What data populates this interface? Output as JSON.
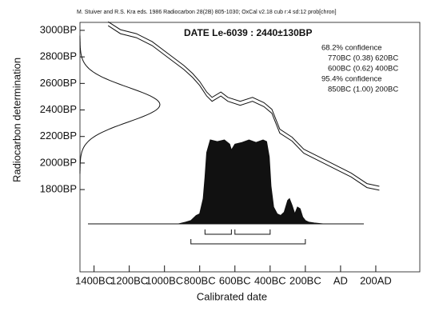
{
  "chart_data": {
    "type": "calibration",
    "reference": "M. Stuiver and R.S. Kra eds. 1986 Radiocarbon 28(2B) 805-1030; OxCal v2.18 cub r:4 sd:12 prob[chron]",
    "title": "DATE Le-6039 : 2440±130BP",
    "x_label": "Calibrated date",
    "y_label": "Radiocarbon determination",
    "xlim": [
      -1480,
      450
    ],
    "ylim": [
      1180,
      3060
    ],
    "xticks": [
      {
        "value": -1400,
        "label": "1400BC"
      },
      {
        "value": -1200,
        "label": "1200BC"
      },
      {
        "value": -1000,
        "label": "1000BC"
      },
      {
        "value": -800,
        "label": "800BC"
      },
      {
        "value": -600,
        "label": "600BC"
      },
      {
        "value": -400,
        "label": "400BC"
      },
      {
        "value": -200,
        "label": "200BC"
      },
      {
        "value": 0,
        "label": "AD"
      },
      {
        "value": 200,
        "label": "200AD"
      }
    ],
    "yticks": [
      {
        "value": 1800,
        "label": "1800BP"
      },
      {
        "value": 2000,
        "label": "2000BP"
      },
      {
        "value": 2200,
        "label": "2200BP"
      },
      {
        "value": 2400,
        "label": "2400BP"
      },
      {
        "value": 2600,
        "label": "2600BP"
      },
      {
        "value": 2800,
        "label": "2800BP"
      },
      {
        "value": 3000,
        "label": "3000BP"
      }
    ],
    "measurement": {
      "mean": 2440,
      "sd": 130
    },
    "curve": {
      "x": [
        -1320,
        -1250,
        -1160,
        -1070,
        -980,
        -890,
        -840,
        -800,
        -760,
        -730,
        -680,
        -640,
        -570,
        -500,
        -435,
        -390,
        -345,
        -275,
        -210,
        -120,
        -30,
        60,
        150,
        220
      ],
      "upper": [
        3065,
        3005,
        2975,
        2915,
        2825,
        2735,
        2675,
        2615,
        2535,
        2495,
        2535,
        2495,
        2465,
        2495,
        2455,
        2405,
        2255,
        2195,
        2105,
        2045,
        1985,
        1925,
        1845,
        1825
      ],
      "lower": [
        3035,
        2975,
        2945,
        2885,
        2795,
        2705,
        2645,
        2585,
        2505,
        2465,
        2505,
        2465,
        2435,
        2465,
        2425,
        2375,
        2225,
        2165,
        2075,
        2015,
        1955,
        1895,
        1815,
        1795
      ]
    },
    "probability": {
      "x": [
        -920,
        -880,
        -850,
        -820,
        -800,
        -780,
        -770,
        -760,
        -740,
        -700,
        -660,
        -630,
        -620,
        -600,
        -560,
        -520,
        -480,
        -440,
        -420,
        -405,
        -395,
        -380,
        -360,
        -340,
        -320,
        -300,
        -290,
        -275,
        -260,
        -245,
        -230,
        -215,
        -200,
        -180,
        -150,
        -100
      ],
      "values": [
        0,
        0.02,
        0.04,
        0.1,
        0.12,
        0.3,
        0.55,
        0.85,
        1.0,
        0.98,
        1.0,
        0.95,
        0.88,
        0.95,
        0.97,
        1.0,
        0.97,
        1.0,
        0.98,
        0.8,
        0.45,
        0.2,
        0.12,
        0.1,
        0.14,
        0.28,
        0.3,
        0.22,
        0.12,
        0.2,
        0.18,
        0.08,
        0.04,
        0.02,
        0.01,
        0
      ]
    },
    "ranges": [
      {
        "label": "68.2% confidence",
        "items": [
          {
            "text": "770BC (0.38) 620BC",
            "from": -770,
            "to": -620
          },
          {
            "text": "600BC (0.62) 400BC",
            "from": -600,
            "to": -400
          }
        ]
      },
      {
        "label": "95.4% confidence",
        "items": [
          {
            "text": "850BC (1.00) 200BC",
            "from": -850,
            "to": -200
          }
        ]
      }
    ]
  }
}
